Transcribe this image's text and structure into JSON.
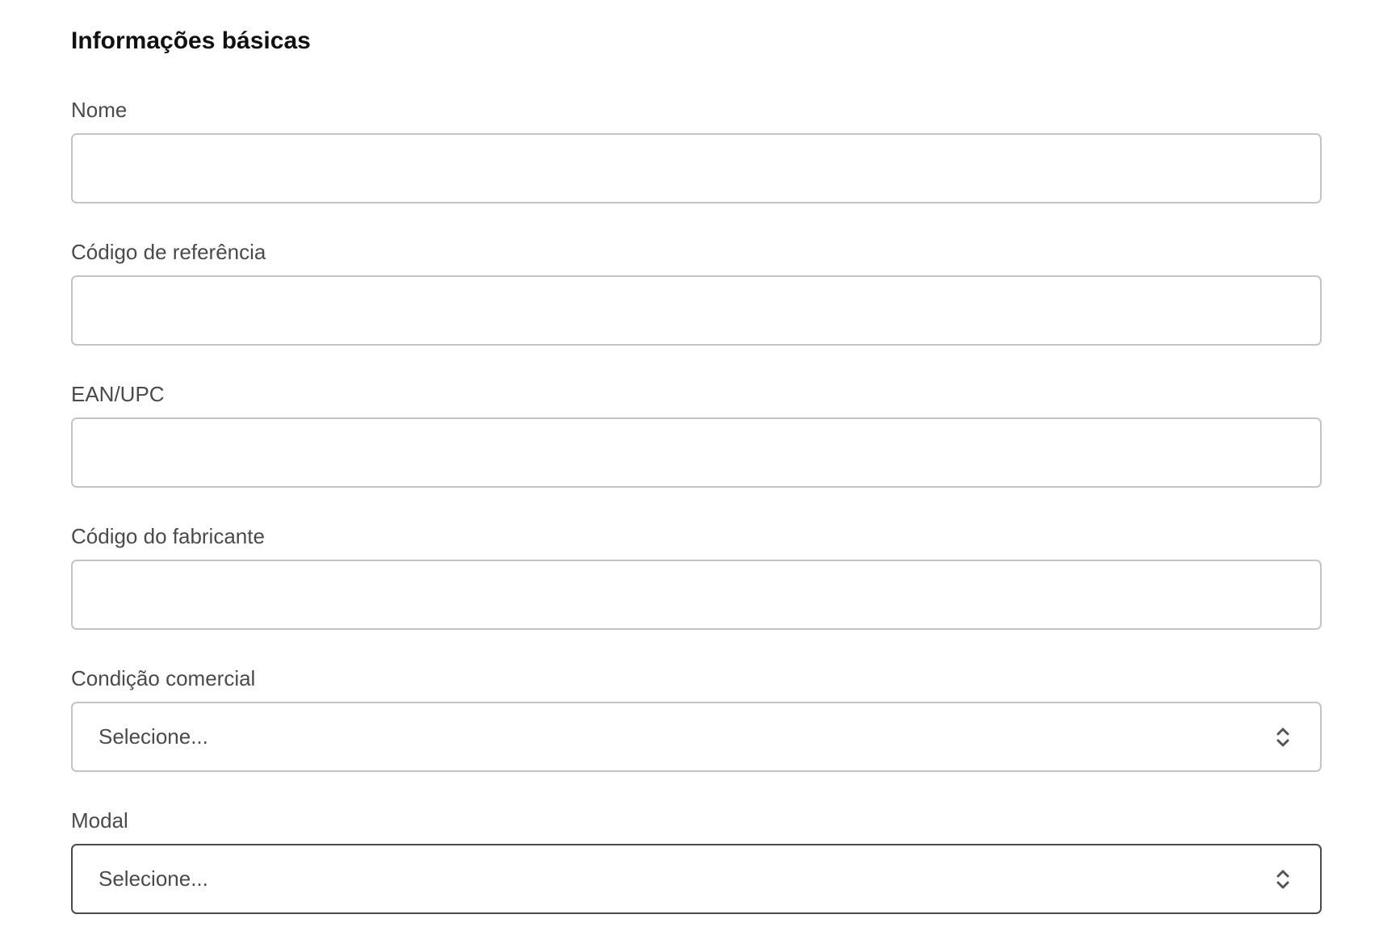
{
  "section_title": "Informações básicas",
  "fields": [
    {
      "label": "Nome",
      "type": "text",
      "value": "",
      "placeholder": ""
    },
    {
      "label": "Código de referência",
      "type": "text",
      "value": "",
      "placeholder": ""
    },
    {
      "label": "EAN/UPC",
      "type": "text",
      "value": "",
      "placeholder": ""
    },
    {
      "label": "Código do fabricante",
      "type": "text",
      "value": "",
      "placeholder": ""
    },
    {
      "label": "Condição comercial",
      "type": "select",
      "value": "Selecione...",
      "icon": "chevron-up-down-icon"
    },
    {
      "label": "Modal",
      "type": "select",
      "value": "Selecione...",
      "icon": "chevron-up-down-icon",
      "focused": true
    }
  ],
  "colors": {
    "border": "#c4c4c4",
    "focused_border": "#4a4a4a",
    "label": "#4a4a4a",
    "title": "#111111"
  }
}
